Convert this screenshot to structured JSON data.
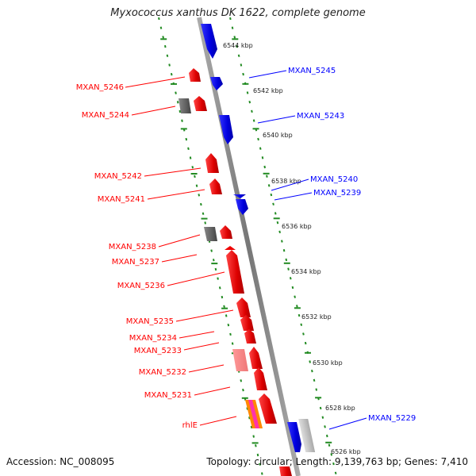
{
  "title": "Myxococcus xanthus DK 1622, complete genome",
  "accession": "Accession: NC_008095",
  "topology": "Topology: circular; Length: 9,139,763 bp; Genes: 7,410",
  "colors": {
    "forward": "#ff0000",
    "reverse": "#0000ff",
    "other": "#666666",
    "backbone": "#888888",
    "dots": "#228b22"
  },
  "ticks": [
    "6544 kbp",
    "6542 kbp",
    "6540 kbp",
    "6538 kbp",
    "6536 kbp",
    "6534 kbp",
    "6532 kbp",
    "6530 kbp",
    "6528 kbp",
    "6526 kbp"
  ],
  "genes_forward": [
    "MXAN_5246",
    "MXAN_5244",
    "MXAN_5242",
    "MXAN_5241",
    "MXAN_5238",
    "MXAN_5237",
    "MXAN_5236",
    "MXAN_5235",
    "MXAN_5234",
    "MXAN_5233",
    "MXAN_5232",
    "MXAN_5231",
    "rhlE"
  ],
  "genes_reverse": [
    "MXAN_5245",
    "MXAN_5243",
    "MXAN_5240",
    "MXAN_5239",
    "MXAN_5229"
  ]
}
